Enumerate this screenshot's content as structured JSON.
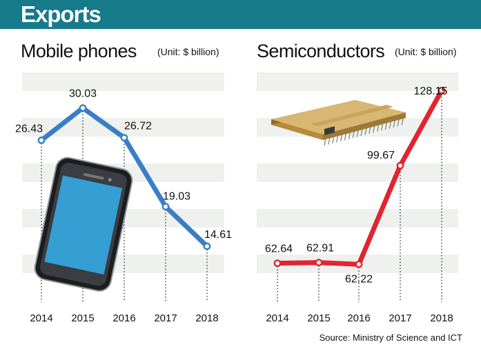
{
  "banner": {
    "title": "Exports"
  },
  "panels": [
    {
      "title": "Mobile phones",
      "unit": "(Unit: $ billion)"
    },
    {
      "title": "Semiconductors",
      "unit": "(Unit: $ billion)"
    }
  ],
  "source": "Source: Ministry of Science and ICT",
  "colors": {
    "banner": "#167a8b",
    "mobile_line": "#3a7fc6",
    "semi_line": "#e3232f",
    "band": "#eef1ee"
  },
  "chart_data": [
    {
      "type": "line",
      "title": "Mobile phones",
      "unit": "(Unit: $ billion)",
      "categories": [
        "2014",
        "2015",
        "2016",
        "2017",
        "2018"
      ],
      "values": [
        26.43,
        30.03,
        26.72,
        19.03,
        14.61
      ],
      "data_labels": [
        "26.43",
        "30.03",
        "26.72",
        "19.03",
        "14.61"
      ],
      "ylim": [
        9,
        34
      ],
      "grid": "alternating horizontal bands",
      "icon": "smartphone-icon"
    },
    {
      "type": "line",
      "title": "Semiconductors",
      "unit": "(Unit: $ billion)",
      "categories": [
        "2014",
        "2015",
        "2016",
        "2017",
        "2018"
      ],
      "values": [
        62.64,
        62.91,
        62.22,
        99.67,
        128.15
      ],
      "data_labels": [
        "62.64",
        "62.91",
        "62.22",
        "99.67",
        "128.15"
      ],
      "ylim": [
        50,
        135
      ],
      "grid": "alternating horizontal bands",
      "icon": "microchip-icon"
    }
  ]
}
